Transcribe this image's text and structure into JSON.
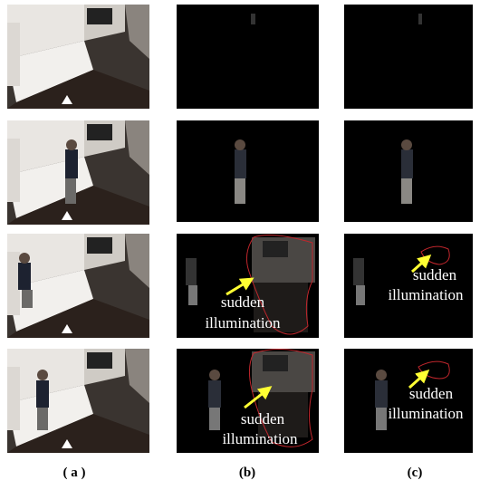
{
  "annotations": [
    {
      "line1": "sudden",
      "line2": "illumination"
    },
    {
      "line1": "sudden",
      "line2": "illumination"
    },
    {
      "line1": "sudden",
      "line2": "illumination"
    },
    {
      "line1": "sudden",
      "line2": "illumination"
    }
  ],
  "captions": [
    "( a )",
    "(b)",
    "(c)"
  ]
}
